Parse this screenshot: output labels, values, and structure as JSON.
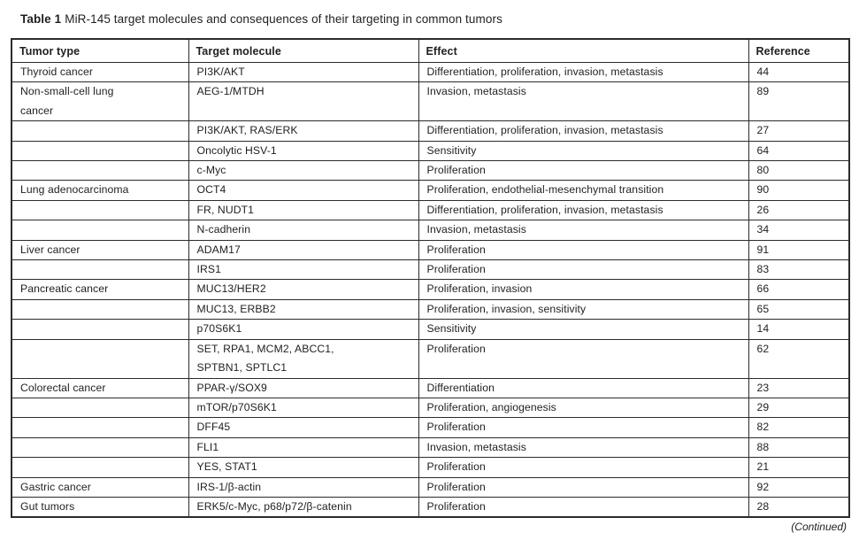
{
  "caption": {
    "label": "Table 1",
    "text": "MiR-145 target molecules and consequences of their targeting in common tumors"
  },
  "table": {
    "columns": [
      "Tumor type",
      "Target molecule",
      "Effect",
      "Reference"
    ],
    "rows": [
      {
        "tumor": "Thyroid cancer",
        "target": "PI3K/AKT",
        "effect": "Differentiation, proliferation, invasion, metastasis",
        "reference": "44"
      },
      {
        "tumor": "Non-small-cell lung\ncancer",
        "target": "AEG-1/MTDH",
        "effect": "Invasion, metastasis",
        "reference": "89"
      },
      {
        "tumor": "",
        "target": "PI3K/AKT, RAS/ERK",
        "effect": "Differentiation, proliferation, invasion, metastasis",
        "reference": "27"
      },
      {
        "tumor": "",
        "target": "Oncolytic HSV-1",
        "effect": "Sensitivity",
        "reference": "64"
      },
      {
        "tumor": "",
        "target": "c-Myc",
        "effect": "Proliferation",
        "reference": "80"
      },
      {
        "tumor": "Lung adenocarcinoma",
        "target": "OCT4",
        "effect": "Proliferation, endothelial-mesenchymal transition",
        "reference": "90"
      },
      {
        "tumor": "",
        "target": "FR, NUDT1",
        "effect": "Differentiation, proliferation, invasion, metastasis",
        "reference": "26"
      },
      {
        "tumor": "",
        "target": "N-cadherin",
        "effect": "Invasion, metastasis",
        "reference": "34"
      },
      {
        "tumor": "Liver cancer",
        "target": "ADAM17",
        "effect": "Proliferation",
        "reference": "91"
      },
      {
        "tumor": "",
        "target": "IRS1",
        "effect": "Proliferation",
        "reference": "83"
      },
      {
        "tumor": "Pancreatic cancer",
        "target": "MUC13/HER2",
        "effect": "Proliferation, invasion",
        "reference": "66"
      },
      {
        "tumor": "",
        "target": "MUC13, ERBB2",
        "effect": "Proliferation, invasion, sensitivity",
        "reference": "65"
      },
      {
        "tumor": "",
        "target": "p70S6K1",
        "effect": "Sensitivity",
        "reference": "14"
      },
      {
        "tumor": "",
        "target": "SET, RPA1, MCM2, ABCC1,\nSPTBN1, SPTLC1",
        "effect": "Proliferation",
        "reference": "62"
      },
      {
        "tumor": "Colorectal cancer",
        "target": "PPAR-γ/SOX9",
        "effect": "Differentiation",
        "reference": "23"
      },
      {
        "tumor": "",
        "target": "mTOR/p70S6K1",
        "effect": "Proliferation, angiogenesis",
        "reference": "29"
      },
      {
        "tumor": "",
        "target": "DFF45",
        "effect": "Proliferation",
        "reference": "82"
      },
      {
        "tumor": "",
        "target": "FLI1",
        "effect": "Invasion, metastasis",
        "reference": "88"
      },
      {
        "tumor": "",
        "target": "YES, STAT1",
        "effect": "Proliferation",
        "reference": "21"
      },
      {
        "tumor": "Gastric cancer",
        "target": "IRS-1/β-actin",
        "effect": "Proliferation",
        "reference": "92"
      },
      {
        "tumor": "Gut tumors",
        "target": "ERK5/c-Myc, p68/p72/β-catenin",
        "effect": "Proliferation",
        "reference": "28"
      }
    ]
  },
  "footer": {
    "continued": "(Continued)"
  },
  "colors": {
    "text": "#1f1f1f",
    "border": "#2b2b2b",
    "background": "#ffffff"
  }
}
